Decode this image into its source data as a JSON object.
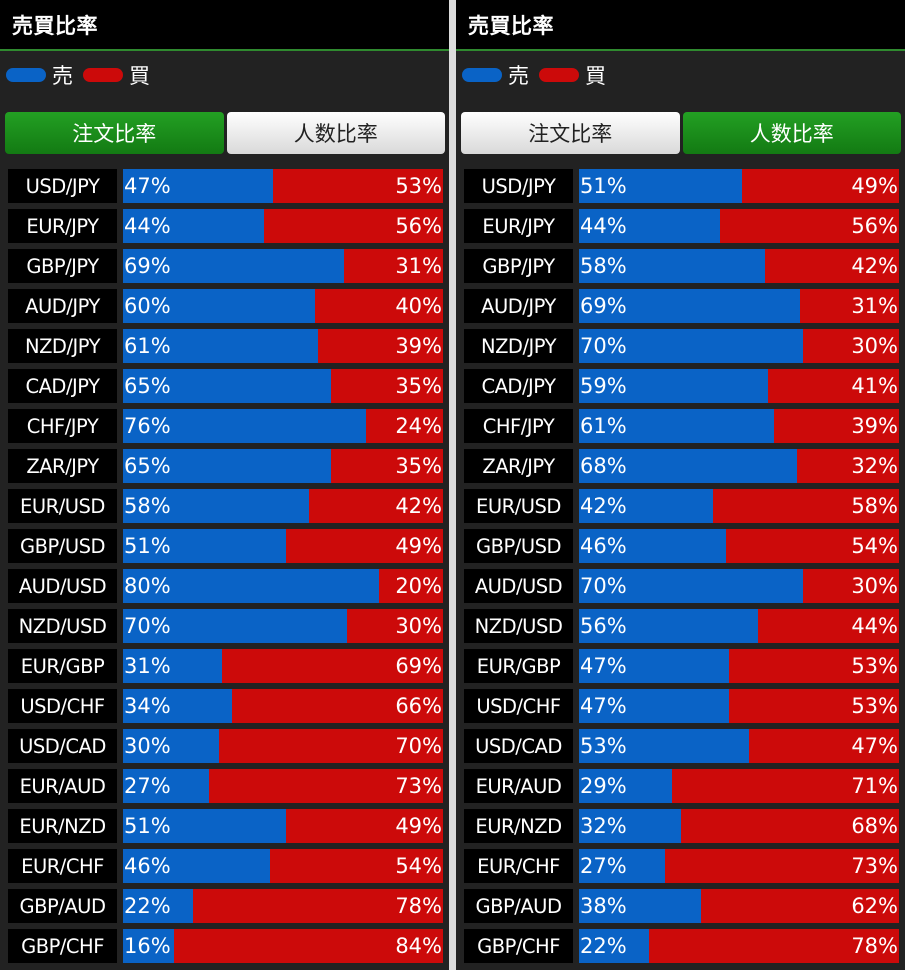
{
  "colors": {
    "sell": "#0a63c6",
    "buy": "#cc0a0a",
    "tab_active": "#1a8f1a"
  },
  "panels": [
    {
      "title": "売買比率",
      "legend": {
        "sell_label": "売",
        "buy_label": "買"
      },
      "tabs": [
        {
          "label": "注文比率",
          "active": true
        },
        {
          "label": "人数比率",
          "active": false
        }
      ],
      "rows": [
        {
          "pair": "USD/JPY",
          "sell": "47%",
          "buy": "53%",
          "sell_value": 47
        },
        {
          "pair": "EUR/JPY",
          "sell": "44%",
          "buy": "56%",
          "sell_value": 44
        },
        {
          "pair": "GBP/JPY",
          "sell": "69%",
          "buy": "31%",
          "sell_value": 69
        },
        {
          "pair": "AUD/JPY",
          "sell": "60%",
          "buy": "40%",
          "sell_value": 60
        },
        {
          "pair": "NZD/JPY",
          "sell": "61%",
          "buy": "39%",
          "sell_value": 61
        },
        {
          "pair": "CAD/JPY",
          "sell": "65%",
          "buy": "35%",
          "sell_value": 65
        },
        {
          "pair": "CHF/JPY",
          "sell": "76%",
          "buy": "24%",
          "sell_value": 76
        },
        {
          "pair": "ZAR/JPY",
          "sell": "65%",
          "buy": "35%",
          "sell_value": 65
        },
        {
          "pair": "EUR/USD",
          "sell": "58%",
          "buy": "42%",
          "sell_value": 58
        },
        {
          "pair": "GBP/USD",
          "sell": "51%",
          "buy": "49%",
          "sell_value": 51
        },
        {
          "pair": "AUD/USD",
          "sell": "80%",
          "buy": "20%",
          "sell_value": 80
        },
        {
          "pair": "NZD/USD",
          "sell": "70%",
          "buy": "30%",
          "sell_value": 70
        },
        {
          "pair": "EUR/GBP",
          "sell": "31%",
          "buy": "69%",
          "sell_value": 31
        },
        {
          "pair": "USD/CHF",
          "sell": "34%",
          "buy": "66%",
          "sell_value": 34
        },
        {
          "pair": "USD/CAD",
          "sell": "30%",
          "buy": "70%",
          "sell_value": 30
        },
        {
          "pair": "EUR/AUD",
          "sell": "27%",
          "buy": "73%",
          "sell_value": 27
        },
        {
          "pair": "EUR/NZD",
          "sell": "51%",
          "buy": "49%",
          "sell_value": 51
        },
        {
          "pair": "EUR/CHF",
          "sell": "46%",
          "buy": "54%",
          "sell_value": 46
        },
        {
          "pair": "GBP/AUD",
          "sell": "22%",
          "buy": "78%",
          "sell_value": 22
        },
        {
          "pair": "GBP/CHF",
          "sell": "16%",
          "buy": "84%",
          "sell_value": 16
        }
      ]
    },
    {
      "title": "売買比率",
      "legend": {
        "sell_label": "売",
        "buy_label": "買"
      },
      "tabs": [
        {
          "label": "注文比率",
          "active": false
        },
        {
          "label": "人数比率",
          "active": true
        }
      ],
      "rows": [
        {
          "pair": "USD/JPY",
          "sell": "51%",
          "buy": "49%",
          "sell_value": 51
        },
        {
          "pair": "EUR/JPY",
          "sell": "44%",
          "buy": "56%",
          "sell_value": 44
        },
        {
          "pair": "GBP/JPY",
          "sell": "58%",
          "buy": "42%",
          "sell_value": 58
        },
        {
          "pair": "AUD/JPY",
          "sell": "69%",
          "buy": "31%",
          "sell_value": 69
        },
        {
          "pair": "NZD/JPY",
          "sell": "70%",
          "buy": "30%",
          "sell_value": 70
        },
        {
          "pair": "CAD/JPY",
          "sell": "59%",
          "buy": "41%",
          "sell_value": 59
        },
        {
          "pair": "CHF/JPY",
          "sell": "61%",
          "buy": "39%",
          "sell_value": 61
        },
        {
          "pair": "ZAR/JPY",
          "sell": "68%",
          "buy": "32%",
          "sell_value": 68
        },
        {
          "pair": "EUR/USD",
          "sell": "42%",
          "buy": "58%",
          "sell_value": 42
        },
        {
          "pair": "GBP/USD",
          "sell": "46%",
          "buy": "54%",
          "sell_value": 46
        },
        {
          "pair": "AUD/USD",
          "sell": "70%",
          "buy": "30%",
          "sell_value": 70
        },
        {
          "pair": "NZD/USD",
          "sell": "56%",
          "buy": "44%",
          "sell_value": 56
        },
        {
          "pair": "EUR/GBP",
          "sell": "47%",
          "buy": "53%",
          "sell_value": 47
        },
        {
          "pair": "USD/CHF",
          "sell": "47%",
          "buy": "53%",
          "sell_value": 47
        },
        {
          "pair": "USD/CAD",
          "sell": "53%",
          "buy": "47%",
          "sell_value": 53
        },
        {
          "pair": "EUR/AUD",
          "sell": "29%",
          "buy": "71%",
          "sell_value": 29
        },
        {
          "pair": "EUR/NZD",
          "sell": "32%",
          "buy": "68%",
          "sell_value": 32
        },
        {
          "pair": "EUR/CHF",
          "sell": "27%",
          "buy": "73%",
          "sell_value": 27
        },
        {
          "pair": "GBP/AUD",
          "sell": "38%",
          "buy": "62%",
          "sell_value": 38
        },
        {
          "pair": "GBP/CHF",
          "sell": "22%",
          "buy": "78%",
          "sell_value": 22
        }
      ]
    }
  ]
}
